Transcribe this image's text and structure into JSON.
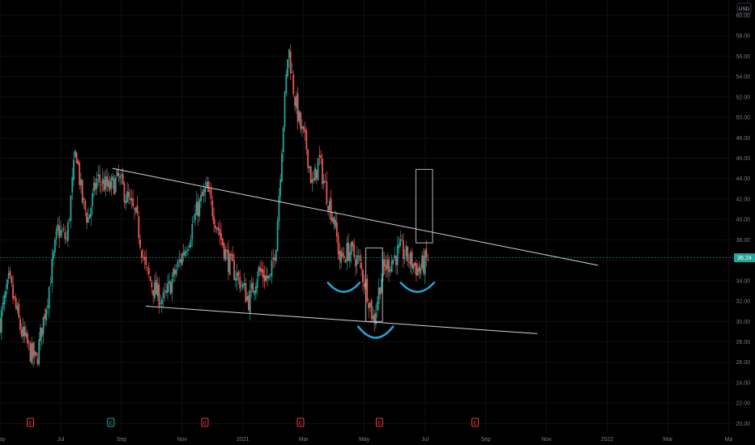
{
  "chart_data": {
    "type": "candlestick",
    "currency": "USD",
    "last_price": "36.24",
    "last_value": 36.24,
    "ylim": [
      19,
      61.5
    ],
    "y_ticks": [
      "20.00",
      "22.00",
      "24.00",
      "26.00",
      "28.00",
      "30.00",
      "32.00",
      "34.00",
      "36.00",
      "38.00",
      "40.00",
      "42.00",
      "44.00",
      "46.00",
      "48.00",
      "50.00",
      "52.00",
      "54.00",
      "56.00",
      "58.00",
      "60.00"
    ],
    "x_ticks": [
      "May",
      "Jul",
      "Sep",
      "Nov",
      "2021",
      "Mar",
      "May",
      "Jul",
      "Sep",
      "Nov",
      "2022",
      "Mar",
      "Ma"
    ],
    "x_tick_months": [
      0,
      2,
      4,
      6,
      8,
      10,
      12,
      14,
      16,
      18,
      20,
      22,
      24
    ],
    "x_range_months": [
      0,
      24.15
    ],
    "earnings_markers": [
      {
        "label": "E",
        "month": 1.0,
        "color": "#f23645"
      },
      {
        "label": "E",
        "month": 3.65,
        "color": "#22ab94"
      },
      {
        "label": "E",
        "month": 6.75,
        "color": "#f23645"
      },
      {
        "label": "E",
        "month": 9.9,
        "color": "#f23645"
      },
      {
        "label": "E",
        "month": 12.5,
        "color": "#f23645"
      },
      {
        "label": "E",
        "month": 15.65,
        "color": "#f23645"
      }
    ],
    "price_path_keypoints": [
      [
        0.0,
        30
      ],
      [
        0.3,
        34
      ],
      [
        0.7,
        29
      ],
      [
        1.0,
        27
      ],
      [
        1.2,
        26
      ],
      [
        1.3,
        28
      ],
      [
        1.6,
        33
      ],
      [
        1.9,
        39
      ],
      [
        2.2,
        38
      ],
      [
        2.5,
        47
      ],
      [
        2.7,
        42
      ],
      [
        2.9,
        40
      ],
      [
        3.2,
        44
      ],
      [
        3.6,
        43
      ],
      [
        3.9,
        44
      ],
      [
        4.2,
        42
      ],
      [
        4.5,
        40
      ],
      [
        4.8,
        35
      ],
      [
        5.1,
        33
      ],
      [
        5.4,
        32
      ],
      [
        5.8,
        35
      ],
      [
        6.2,
        38
      ],
      [
        6.5,
        41
      ],
      [
        6.8,
        43
      ],
      [
        7.1,
        40
      ],
      [
        7.5,
        36
      ],
      [
        7.9,
        34
      ],
      [
        8.2,
        32
      ],
      [
        8.5,
        35
      ],
      [
        8.9,
        34
      ],
      [
        9.1,
        38
      ],
      [
        9.3,
        48
      ],
      [
        9.5,
        57
      ],
      [
        9.7,
        52
      ],
      [
        9.9,
        49
      ],
      [
        10.1,
        47
      ],
      [
        10.3,
        43
      ],
      [
        10.5,
        46
      ],
      [
        10.8,
        42
      ],
      [
        11.0,
        40
      ],
      [
        11.2,
        36
      ],
      [
        11.5,
        37
      ],
      [
        11.8,
        36
      ],
      [
        12.1,
        33
      ],
      [
        12.3,
        30
      ],
      [
        12.6,
        35
      ],
      [
        12.9,
        36
      ],
      [
        13.2,
        37
      ],
      [
        13.5,
        36
      ],
      [
        13.8,
        35
      ],
      [
        14.1,
        36.24
      ]
    ],
    "lines": [
      {
        "name": "upper-trendline",
        "from": [
          3.7,
          45.0
        ],
        "to": [
          19.7,
          35.5
        ],
        "color": "#d1d4dc"
      },
      {
        "name": "lower-trendline",
        "from": [
          4.8,
          31.5
        ],
        "to": [
          17.7,
          28.8
        ],
        "color": "#d1d4dc"
      }
    ],
    "boxes": [
      {
        "name": "measure-box-low",
        "x0": 12.05,
        "x1": 12.6,
        "y0": 30.0,
        "y1": 37.2,
        "color": "#b2b5be"
      },
      {
        "name": "measure-box-target",
        "x0": 13.7,
        "x1": 14.25,
        "y0": 37.7,
        "y1": 44.9,
        "color": "#b2b5be"
      }
    ],
    "arcs": [
      {
        "name": "left-shoulder-arc",
        "x0": 10.8,
        "x1": 11.85,
        "y": 33.8,
        "depth": 0.9,
        "color": "#29a3d6"
      },
      {
        "name": "head-arc",
        "x0": 11.8,
        "x1": 12.95,
        "y": 29.5,
        "depth": 1.1,
        "color": "#29a3d6"
      },
      {
        "name": "right-shoulder-arc",
        "x0": 13.2,
        "x1": 14.3,
        "y": 33.8,
        "depth": 0.9,
        "color": "#29a3d6"
      }
    ],
    "colors": {
      "up": "#26a69a",
      "down": "#ef5350",
      "background": "#000000",
      "axis_text": "#787b86",
      "grid": "#0f0f0f"
    }
  }
}
